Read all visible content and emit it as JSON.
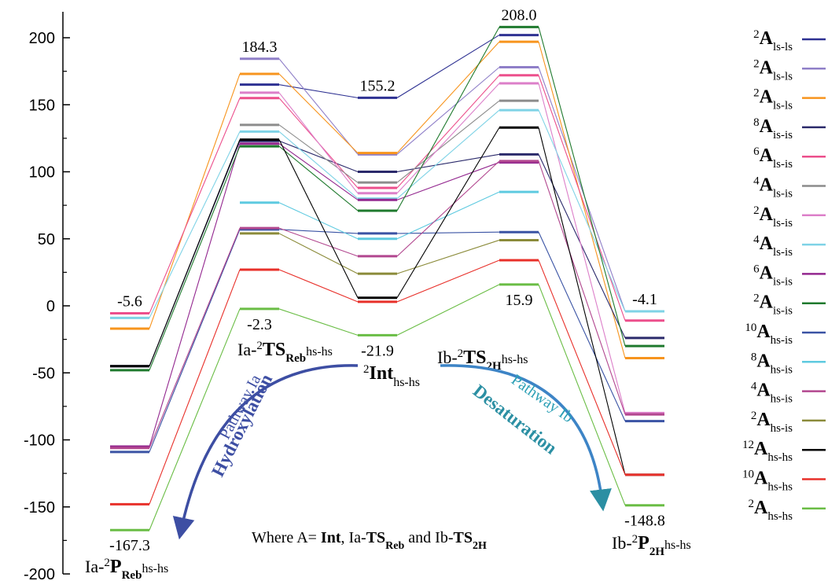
{
  "chart_data": {
    "type": "line",
    "ylim": [
      -200,
      220
    ],
    "yticks": [
      -200,
      -150,
      -100,
      -50,
      0,
      50,
      100,
      150,
      200
    ],
    "states": [
      {
        "key": "P_Reb",
        "prefix": "Ia-",
        "sup": "2",
        "main": "P",
        "sub": "Reb",
        "tail": "hs-hs"
      },
      {
        "key": "TS_Reb",
        "prefix": "Ia-",
        "sup": "2",
        "main": "TS",
        "sub": "Reb",
        "tail": "hs-hs"
      },
      {
        "key": "Int",
        "prefix": "",
        "sup": "2",
        "main": "Int",
        "sub": "",
        "tail": "hs-hs"
      },
      {
        "key": "TS_2H",
        "prefix": "Ib-",
        "sup": "2",
        "main": "TS",
        "sub": "2H",
        "tail": "hs-hs"
      },
      {
        "key": "P_2H",
        "prefix": "Ib-",
        "sup": "2",
        "main": "P",
        "sub": "2H",
        "tail": "hs-hs"
      }
    ],
    "value_labels": [
      {
        "state": "P_Reb",
        "text": "-5.6",
        "pos": "above"
      },
      {
        "state": "P_Reb",
        "text": "-167.3",
        "pos": "below"
      },
      {
        "state": "TS_Reb",
        "text": "184.3",
        "pos": "above"
      },
      {
        "state": "TS_Reb",
        "text": "-2.3",
        "pos": "below"
      },
      {
        "state": "Int",
        "text": "155.2",
        "pos": "above"
      },
      {
        "state": "Int",
        "text": "-21.9",
        "pos": "below"
      },
      {
        "state": "TS_2H",
        "text": "208.0",
        "pos": "above"
      },
      {
        "state": "TS_2H",
        "text": "15.9",
        "pos": "below"
      },
      {
        "state": "P_2H",
        "text": "-4.1",
        "pos": "above"
      },
      {
        "state": "P_2H",
        "text": "-148.8",
        "pos": "below"
      }
    ],
    "series": [
      {
        "mult": "2",
        "spin": "ls-ls",
        "color": "#2e3192",
        "values": [
          null,
          165,
          155.2,
          202,
          null
        ]
      },
      {
        "mult": "2",
        "spin": "ls-ls",
        "color": "#8f7fc8",
        "values": [
          null,
          184.3,
          113,
          178,
          -4.1
        ]
      },
      {
        "mult": "2",
        "spin": "ls-ls",
        "color": "#f7941d",
        "values": [
          -17,
          173,
          114,
          197,
          -39
        ]
      },
      {
        "mult": "8",
        "spin": "is-is",
        "color": "#2b2a6b",
        "values": [
          -45,
          123,
          100,
          113,
          -24
        ]
      },
      {
        "mult": "6",
        "spin": "ls-is",
        "color": "#ec4f8c",
        "values": [
          -5.6,
          155,
          88,
          172,
          -11
        ]
      },
      {
        "mult": "4",
        "spin": "ls-is",
        "color": "#8c8c8c",
        "values": [
          null,
          135,
          92,
          153,
          null
        ]
      },
      {
        "mult": "2",
        "spin": "ls-is",
        "color": "#dc7fc9",
        "values": [
          null,
          159,
          84,
          166,
          -80
        ]
      },
      {
        "mult": "4",
        "spin": "ls-is",
        "color": "#7fd3e6",
        "values": [
          -9,
          130,
          80,
          146,
          -4.1
        ]
      },
      {
        "mult": "6",
        "spin": "is-is",
        "color": "#93278f",
        "values": [
          -105,
          121,
          79,
          107,
          null
        ]
      },
      {
        "mult": "2",
        "spin": "is-is",
        "color": "#1f7a2e",
        "values": [
          -48,
          119,
          71,
          208.0,
          -30
        ]
      },
      {
        "mult": "10",
        "spin": "hs-is",
        "color": "#3a53a4",
        "values": [
          -109,
          57,
          54,
          55,
          -86
        ]
      },
      {
        "mult": "8",
        "spin": "hs-is",
        "color": "#5ecae0",
        "values": [
          null,
          77,
          50,
          85,
          null
        ]
      },
      {
        "mult": "4",
        "spin": "hs-is",
        "color": "#b2478f",
        "values": [
          -106,
          58,
          37,
          108,
          -81
        ]
      },
      {
        "mult": "2",
        "spin": "hs-is",
        "color": "#8b8b3a",
        "values": [
          null,
          54,
          24,
          49,
          null
        ]
      },
      {
        "mult": "12",
        "spin": "hs-hs",
        "color": "#000000",
        "values": [
          -45,
          124,
          6,
          133,
          -126
        ]
      },
      {
        "mult": "10",
        "spin": "hs-hs",
        "color": "#e8302a",
        "values": [
          -148,
          27,
          3,
          34,
          -126
        ]
      },
      {
        "mult": "2",
        "spin": "hs-hs",
        "color": "#6abd45",
        "values": [
          -167.3,
          -2.3,
          -21.9,
          15.9,
          -148.8
        ]
      }
    ],
    "pathways": [
      {
        "name": "Pathway Ia",
        "label": "Hydroxylation",
        "color": "#3d4ea3"
      },
      {
        "name": "Pathway Ib",
        "label": "Desaturation",
        "color": "#2b8fa3"
      }
    ],
    "note": {
      "prefix": "Where A= ",
      "a": "Int",
      "b_pre": ", Ia-",
      "b_main": "TS",
      "b_sub": "Reb",
      "mid": " and Ib-",
      "c_main": "TS",
      "c_sub": "2H"
    },
    "legend_symbol": "A"
  }
}
